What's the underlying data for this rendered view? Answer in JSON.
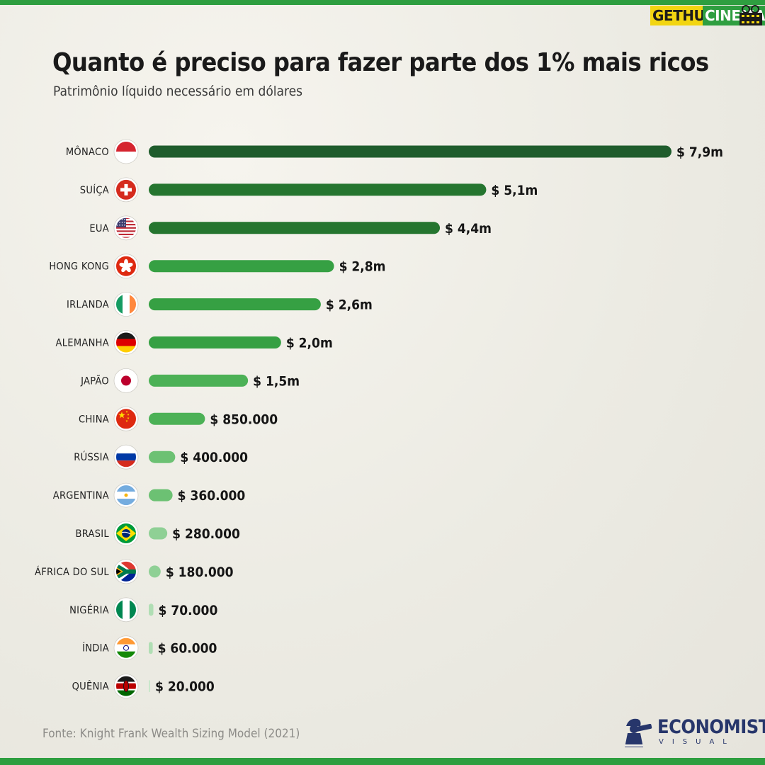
{
  "colors": {
    "stripe": "#2e9e40",
    "brand_yellow": "#f2d511",
    "brand_green": "#2e9e40",
    "text": "#1a1a1a",
    "bar_shades": [
      "#1f5c2c",
      "#25752f",
      "#2c8a35",
      "#36a043",
      "#4cb156",
      "#6cc173",
      "#8fd095",
      "#b0deb4",
      "#c9e7cb"
    ]
  },
  "brand": {
    "part1": "GETHU",
    "part2": "CINEMA"
  },
  "header": {
    "title": "Quanto é preciso para fazer parte dos 1% mais ricos",
    "subtitle": "Patrimônio líquido necessário em dólares"
  },
  "chart_data": {
    "type": "bar",
    "orientation": "horizontal",
    "unit": "US$",
    "xlim": [
      0,
      7900000
    ],
    "grid": false,
    "legend": "none",
    "categories": [
      "MÔNACO",
      "SUÍÇA",
      "EUA",
      "HONG KONG",
      "IRLANDA",
      "ALEMANHA",
      "JAPÃO",
      "CHINA",
      "RÚSSIA",
      "ARGENTINA",
      "BRASIL",
      "ÁFRICA DO SUL",
      "NIGÉRIA",
      "ÍNDIA",
      "QUÊNIA"
    ],
    "values": [
      7900000,
      5100000,
      4400000,
      2800000,
      2600000,
      2000000,
      1500000,
      850000,
      400000,
      360000,
      280000,
      180000,
      70000,
      60000,
      20000
    ],
    "labels": [
      "$ 7,9m",
      "$ 5,1m",
      "$ 4,4m",
      "$ 2,8m",
      "$ 2,6m",
      "$ 2,0m",
      "$ 1,5m",
      "$ 850.000",
      "$ 400.000",
      "$ 360.000",
      "$ 280.000",
      "$ 180.000",
      "$ 70.000",
      "$ 60.000",
      "$ 20.000"
    ],
    "flags": [
      "monaco-flag",
      "switzerland-flag",
      "usa-flag",
      "hong-kong-flag",
      "ireland-flag",
      "germany-flag",
      "japan-flag",
      "china-flag",
      "russia-flag",
      "argentina-flag",
      "brazil-flag",
      "south-africa-flag",
      "nigeria-flag",
      "india-flag",
      "kenya-flag"
    ]
  },
  "footer": {
    "source": "Fonte: Knight Frank Wealth Sizing Model (2021)",
    "logo_line1": "ECONOMISTA",
    "logo_line2": "VISUAL"
  }
}
